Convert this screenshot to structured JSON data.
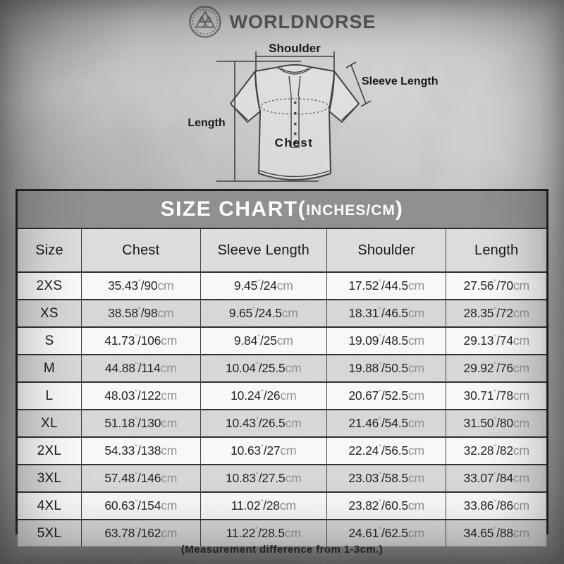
{
  "brand": {
    "name": "WORLDNORSE",
    "logo_icon": "valknut-emblem-icon"
  },
  "diagram": {
    "labels": {
      "shoulder": "Shoulder",
      "sleeve_length": "Sleeve Length",
      "length": "Length",
      "chest": "Chest"
    }
  },
  "size_chart": {
    "title_main": "SIZE CHART(",
    "title_units": "INCHES/CM",
    "title_close": ")",
    "inch_symbol": "″",
    "separator": "/",
    "cm_suffix": "cm"
  },
  "chart_data": {
    "type": "table",
    "title": "SIZE CHART(INCHES/CM)",
    "columns": [
      "Size",
      "Chest",
      "Sleeve Length",
      "Shoulder",
      "Length"
    ],
    "rows": [
      {
        "size": "2XS",
        "chest": {
          "in": "35.43",
          "cm": "90"
        },
        "sleeve_length": {
          "in": "9.45",
          "cm": "24"
        },
        "shoulder": {
          "in": "17.52",
          "cm": "44.5"
        },
        "length": {
          "in": "27.56",
          "cm": "70"
        }
      },
      {
        "size": "XS",
        "chest": {
          "in": "38.58",
          "cm": "98"
        },
        "sleeve_length": {
          "in": "9.65",
          "cm": "24.5"
        },
        "shoulder": {
          "in": "18.31",
          "cm": "46.5"
        },
        "length": {
          "in": "28.35",
          "cm": "72"
        }
      },
      {
        "size": "S",
        "chest": {
          "in": "41.73",
          "cm": "106"
        },
        "sleeve_length": {
          "in": "9.84",
          "cm": "25"
        },
        "shoulder": {
          "in": "19.09",
          "cm": "48.5"
        },
        "length": {
          "in": "29.13",
          "cm": "74"
        }
      },
      {
        "size": "M",
        "chest": {
          "in": "44.88",
          "cm": "114"
        },
        "sleeve_length": {
          "in": "10.04",
          "cm": "25.5"
        },
        "shoulder": {
          "in": "19.88",
          "cm": "50.5"
        },
        "length": {
          "in": "29.92",
          "cm": "76"
        }
      },
      {
        "size": "L",
        "chest": {
          "in": "48.03",
          "cm": "122"
        },
        "sleeve_length": {
          "in": "10.24",
          "cm": "26"
        },
        "shoulder": {
          "in": "20.67",
          "cm": "52.5"
        },
        "length": {
          "in": "30.71",
          "cm": "78"
        }
      },
      {
        "size": "XL",
        "chest": {
          "in": "51.18",
          "cm": "130"
        },
        "sleeve_length": {
          "in": "10.43",
          "cm": "26.5"
        },
        "shoulder": {
          "in": "21.46",
          "cm": "54.5"
        },
        "length": {
          "in": "31.50",
          "cm": "80"
        }
      },
      {
        "size": "2XL",
        "chest": {
          "in": "54.33",
          "cm": "138"
        },
        "sleeve_length": {
          "in": "10.63",
          "cm": "27"
        },
        "shoulder": {
          "in": "22.24",
          "cm": "56.5"
        },
        "length": {
          "in": "32.28",
          "cm": "82"
        }
      },
      {
        "size": "3XL",
        "chest": {
          "in": "57.48",
          "cm": "146"
        },
        "sleeve_length": {
          "in": "10.83",
          "cm": "27.5"
        },
        "shoulder": {
          "in": "23.03",
          "cm": "58.5"
        },
        "length": {
          "in": "33.07",
          "cm": "84"
        }
      },
      {
        "size": "4XL",
        "chest": {
          "in": "60.63",
          "cm": "154"
        },
        "sleeve_length": {
          "in": "11.02",
          "cm": "28"
        },
        "shoulder": {
          "in": "23.82",
          "cm": "60.5"
        },
        "length": {
          "in": "33.86",
          "cm": "86"
        }
      },
      {
        "size": "5XL",
        "chest": {
          "in": "63.78",
          "cm": "162"
        },
        "sleeve_length": {
          "in": "11.22",
          "cm": "28.5"
        },
        "shoulder": {
          "in": "24.61",
          "cm": "62.5"
        },
        "length": {
          "in": "34.65",
          "cm": "88"
        }
      }
    ]
  },
  "footnote": "(Measurement difference from 1-3cm.)",
  "colors": {
    "title_bar": "#8d8e8d",
    "row_alt": "#d9d9d8",
    "row_white": "#fbfbfb",
    "table_border": "#1a1a1a",
    "unit_text": "#8f8f8f",
    "background_base": "#b5b6b5"
  }
}
